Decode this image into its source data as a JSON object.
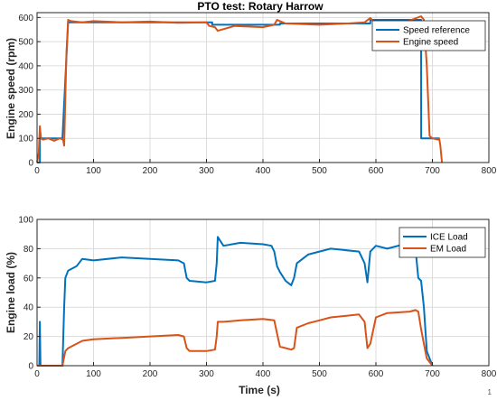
{
  "chart_data": [
    {
      "type": "line",
      "title": "PTO test: Rotary Harrow",
      "xlabel": "",
      "ylabel": "Engine speed (rpm)",
      "xlim": [
        0,
        800
      ],
      "ylim": [
        0,
        620
      ],
      "xticks": [
        "0",
        "100",
        "200",
        "300",
        "400",
        "500",
        "600",
        "700",
        "800"
      ],
      "yticks": [
        "0",
        "100",
        "200",
        "300",
        "400",
        "500",
        "600"
      ],
      "grid": true,
      "legend": "top-right",
      "series": [
        {
          "name": "Speed reference",
          "color": "#0072BD",
          "x": [
            0,
            5,
            5.1,
            45,
            55,
            310,
            310.1,
            430,
            430.1,
            590,
            590.1,
            680,
            680.1,
            712
          ],
          "y": [
            0,
            0,
            100,
            100,
            580,
            580,
            570,
            570,
            575,
            575,
            590,
            590,
            100,
            100
          ]
        },
        {
          "name": "Engine speed",
          "color": "#D95319",
          "x": [
            0,
            3,
            5,
            7,
            10,
            20,
            30,
            40,
            46,
            48,
            52,
            55,
            60,
            80,
            100,
            150,
            200,
            250,
            300,
            305,
            315,
            320,
            350,
            400,
            420,
            425,
            430,
            440,
            500,
            550,
            580,
            590,
            600,
            640,
            680,
            685,
            690,
            695,
            700,
            710,
            712,
            714,
            717
          ],
          "y": [
            0,
            40,
            150,
            100,
            95,
            100,
            90,
            100,
            95,
            70,
            450,
            590,
            585,
            580,
            585,
            580,
            583,
            578,
            580,
            565,
            560,
            545,
            565,
            560,
            570,
            590,
            585,
            575,
            570,
            575,
            580,
            598,
            572,
            570,
            605,
            590,
            400,
            110,
            100,
            95,
            100,
            70,
            0
          ]
        }
      ]
    },
    {
      "type": "line",
      "title": "",
      "xlabel": "Time (s)",
      "ylabel": "Engine load (%)",
      "xlim": [
        0,
        800
      ],
      "ylim": [
        0,
        100
      ],
      "xticks": [
        "0",
        "100",
        "200",
        "300",
        "400",
        "500",
        "600",
        "700",
        "800"
      ],
      "yticks": [
        "0",
        "20",
        "40",
        "60",
        "80",
        "100"
      ],
      "grid": true,
      "legend": "top-right",
      "series": [
        {
          "name": "ICE Load",
          "color": "#0072BD",
          "x": [
            0,
            4,
            5,
            6,
            7,
            45,
            48,
            50,
            55,
            70,
            80,
            100,
            150,
            200,
            250,
            260,
            265,
            270,
            300,
            315,
            318,
            320,
            325,
            330,
            360,
            400,
            415,
            420,
            425,
            430,
            440,
            450,
            455,
            460,
            480,
            500,
            520,
            570,
            580,
            585,
            590,
            600,
            620,
            660,
            670,
            675,
            680,
            685,
            690,
            700
          ],
          "y": [
            0,
            0,
            30,
            0,
            0,
            0,
            40,
            60,
            65,
            68,
            73,
            72,
            74,
            73,
            72,
            70,
            60,
            58,
            57,
            58,
            70,
            88,
            85,
            82,
            84,
            83,
            82,
            78,
            68,
            64,
            58,
            55,
            60,
            70,
            76,
            78,
            80,
            78,
            70,
            57,
            78,
            82,
            80,
            84,
            80,
            60,
            58,
            40,
            10,
            0
          ]
        },
        {
          "name": "EM Load",
          "color": "#D95319",
          "x": [
            0,
            45,
            50,
            55,
            70,
            80,
            100,
            150,
            200,
            250,
            260,
            265,
            270,
            300,
            315,
            318,
            320,
            330,
            360,
            400,
            420,
            425,
            430,
            450,
            455,
            460,
            480,
            500,
            520,
            570,
            580,
            585,
            590,
            600,
            620,
            660,
            670,
            675,
            680,
            685,
            690,
            700
          ],
          "y": [
            0,
            0,
            10,
            12,
            15,
            17,
            18,
            19,
            20,
            21,
            20,
            12,
            10,
            10,
            11,
            20,
            30,
            30,
            31,
            32,
            31,
            22,
            13,
            11,
            12,
            26,
            29,
            31,
            33,
            35,
            30,
            12,
            15,
            33,
            36,
            37,
            38,
            37,
            25,
            15,
            5,
            0
          ]
        }
      ]
    }
  ],
  "watermark": "1"
}
